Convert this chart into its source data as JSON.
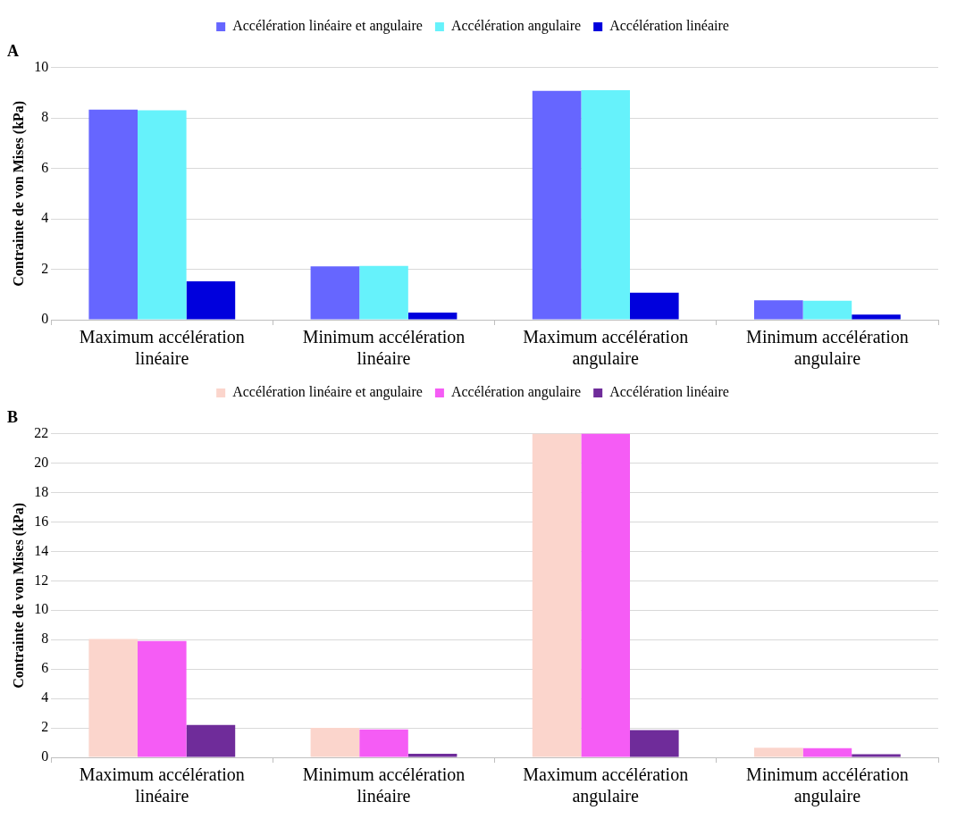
{
  "chart_data": [
    {
      "type": "bar",
      "title": "A",
      "ylabel": "Contrainte de von Mises (kPa)",
      "categories": [
        "Maximum accélération linéaire",
        "Minimum accélération linéaire",
        "Maximum accélération angulaire",
        "Minimum accélération angulaire"
      ],
      "series": [
        {
          "name": "Accélération linéaire et angulaire",
          "color": "#6666ff",
          "values": [
            8.33,
            2.12,
            9.07,
            0.77
          ]
        },
        {
          "name": "Accélération angulaire",
          "color": "#66f2fb",
          "values": [
            8.3,
            2.13,
            9.1,
            0.75
          ]
        },
        {
          "name": "Accélération linéaire",
          "color": "#0000dd",
          "values": [
            1.52,
            0.28,
            1.07,
            0.2
          ]
        }
      ],
      "ylim": [
        0,
        10
      ],
      "yticks": [
        0,
        2,
        4,
        6,
        8,
        10
      ],
      "grid": "y",
      "legend": "top"
    },
    {
      "type": "bar",
      "title": "B",
      "ylabel": "Contrainte de von Mises (kPa)",
      "categories": [
        "Maximum accélération linéaire",
        "Minimum accélération linéaire",
        "Maximum accélération angulaire",
        "Minimum accélération angulaire"
      ],
      "series": [
        {
          "name": "Accélération linéaire et angulaire",
          "color": "#fbd5cc",
          "values": [
            8.05,
            2.0,
            22,
            0.65
          ]
        },
        {
          "name": "Accélération angulaire",
          "color": "#f55cf5",
          "values": [
            7.9,
            1.9,
            22,
            0.62
          ]
        },
        {
          "name": "Accélération linéaire",
          "color": "#6f2c9a",
          "values": [
            2.2,
            0.25,
            1.85,
            0.22
          ]
        }
      ],
      "ylim": [
        0,
        22
      ],
      "yticks": [
        0,
        2,
        4,
        6,
        8,
        10,
        12,
        14,
        16,
        18,
        20,
        22
      ],
      "grid": "y",
      "legend": "top"
    }
  ]
}
